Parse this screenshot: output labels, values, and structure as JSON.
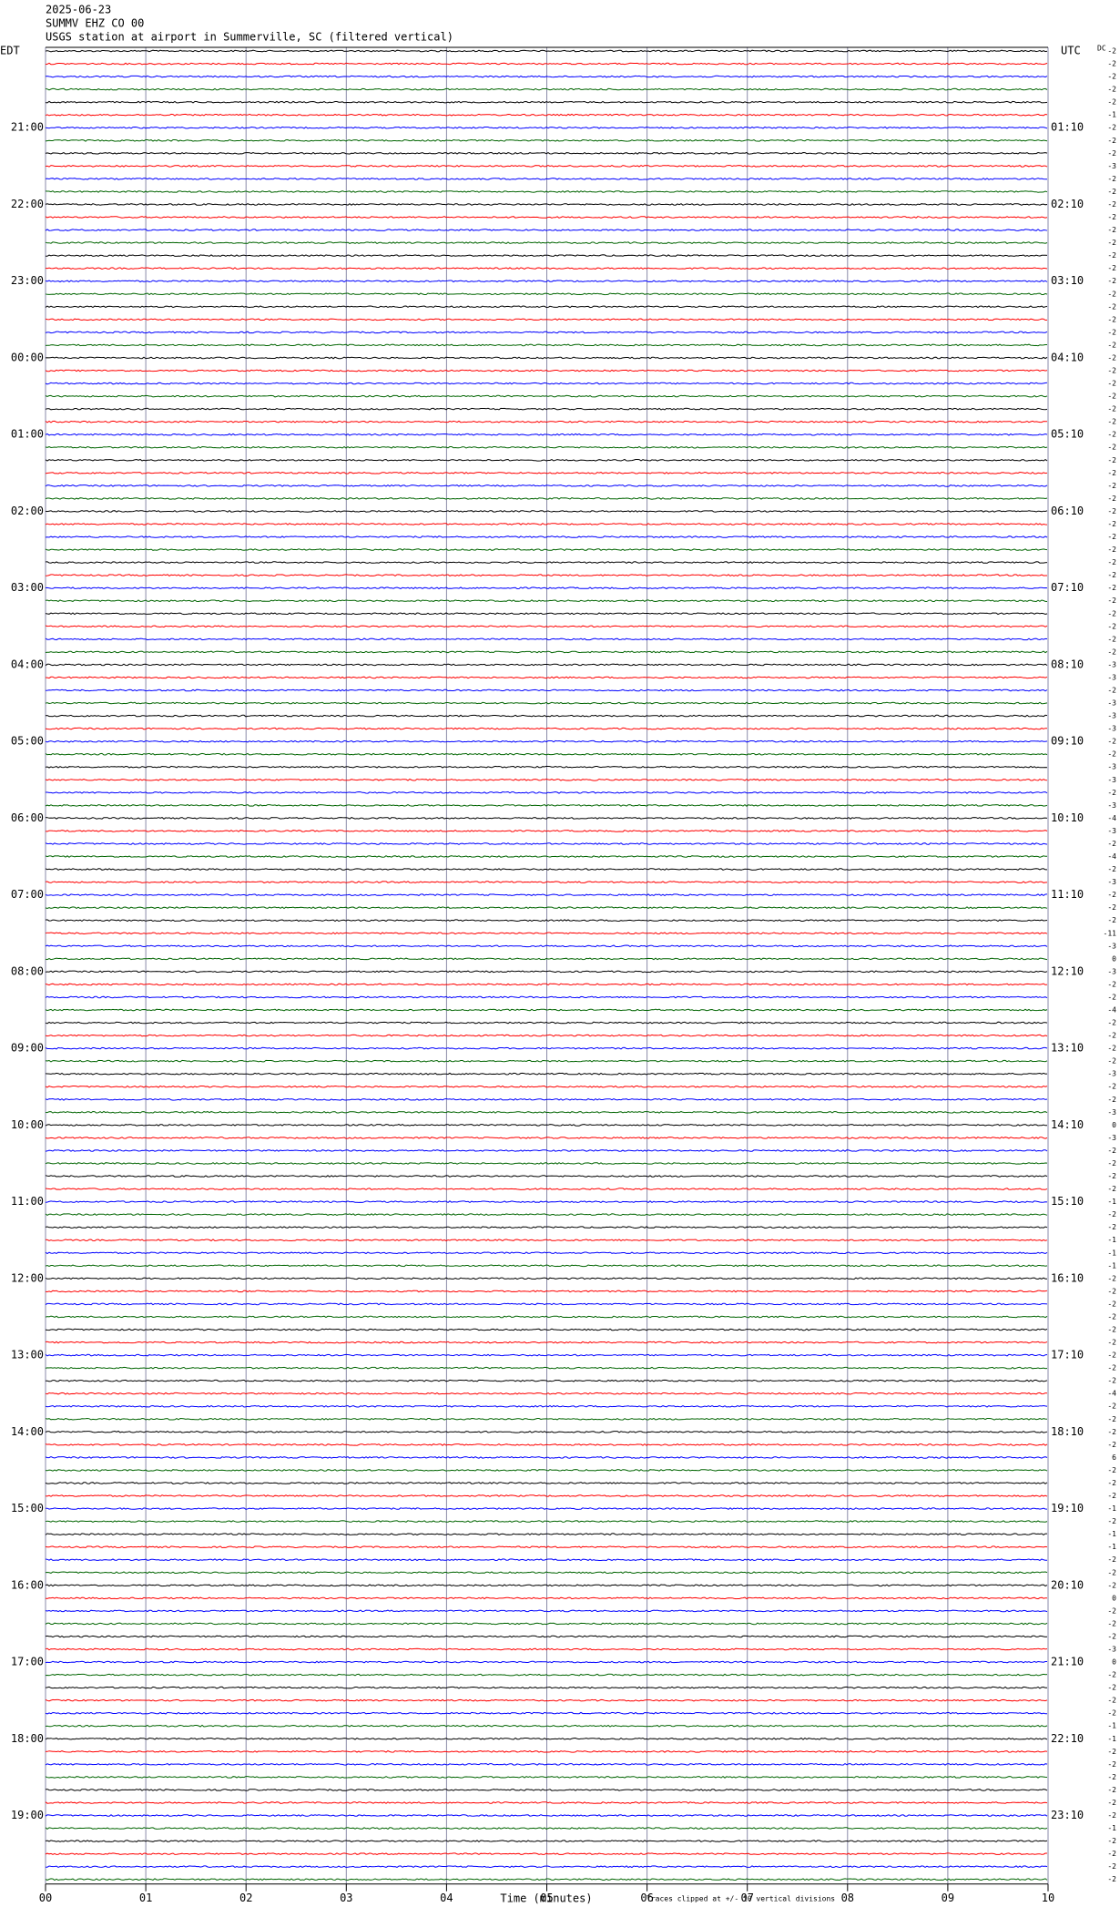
{
  "header": {
    "date": "2025-06-23",
    "station": "SUMMV EHZ CO 00",
    "description": "USGS station at airport in Summerville, SC (filtered vertical)"
  },
  "chart_data": {
    "type": "helicorder",
    "left_label": "EDT",
    "right_label": "UTC",
    "dc_label": "DC",
    "left_times": [
      "21:00",
      "22:00",
      "23:00",
      "00:00",
      "01:00",
      "02:00",
      "03:00",
      "04:00",
      "05:00",
      "06:00",
      "07:00",
      "08:00",
      "09:00",
      "10:00",
      "11:00",
      "12:00",
      "13:00",
      "14:00",
      "15:00",
      "16:00",
      "17:00",
      "18:00",
      "19:00"
    ],
    "right_times": [
      "01:10",
      "02:10",
      "03:10",
      "04:10",
      "05:10",
      "06:10",
      "07:10",
      "08:10",
      "09:10",
      "10:10",
      "11:10",
      "12:10",
      "13:10",
      "14:10",
      "15:10",
      "16:10",
      "17:10",
      "18:10",
      "19:10",
      "20:10",
      "21:10",
      "22:10",
      "23:10"
    ],
    "trace_colors": [
      "#000000",
      "#ff0000",
      "#0000ff",
      "#006400"
    ],
    "dc_offsets": [
      -2,
      -2,
      -2,
      -2,
      -2,
      -1,
      -2,
      -2,
      -2,
      -3,
      -2,
      -2,
      -2,
      -2,
      -2,
      -2,
      -2,
      -2,
      -2,
      -2,
      -2,
      -2,
      -2,
      -2,
      -2,
      -2,
      -2,
      -2,
      -2,
      -2,
      -2,
      -2,
      -2,
      -2,
      -2,
      -2,
      -2,
      -2,
      -2,
      -2,
      -2,
      -2,
      -2,
      -2,
      -2,
      -2,
      -2,
      -2,
      -3,
      -3,
      -2,
      -3,
      -3,
      -3,
      -2,
      -2,
      -3,
      -3,
      -2,
      -3,
      -4,
      -3,
      -2,
      -4,
      -2,
      -3,
      -2,
      -2,
      -2,
      -11,
      -3,
      0,
      -3,
      -2,
      -2,
      -4,
      -2,
      -2,
      -2,
      -2,
      -3,
      -2,
      -2,
      -3,
      0,
      -3,
      -2,
      -2,
      -2,
      -2,
      -1,
      -2,
      -2,
      -1,
      -1,
      -1,
      -2,
      -2,
      -2,
      -2,
      -2,
      -2,
      -2,
      -2,
      -2,
      -4,
      -2,
      -2,
      -2,
      -2,
      6,
      -2,
      -2,
      -2,
      -1,
      -2,
      -1,
      -1,
      -2,
      -2,
      -2,
      0,
      -2,
      -2,
      -2,
      -3,
      0,
      -2,
      -2,
      -2,
      -2,
      -1,
      -1,
      -2,
      -2,
      -2,
      -2,
      -2,
      -2,
      -1,
      -2,
      -2,
      -2,
      -2
    ],
    "xlim": [
      0,
      10
    ],
    "xticks": [
      {
        "value": 0,
        "label": "00"
      },
      {
        "value": 1,
        "label": "01"
      },
      {
        "value": 2,
        "label": "02"
      },
      {
        "value": 3,
        "label": "03"
      },
      {
        "value": 4,
        "label": "04"
      },
      {
        "value": 5,
        "label": "05"
      },
      {
        "value": 6,
        "label": "06"
      },
      {
        "value": 7,
        "label": "07"
      },
      {
        "value": 8,
        "label": "08"
      },
      {
        "value": 9,
        "label": "09"
      },
      {
        "value": 10,
        "label": "10"
      }
    ],
    "xlabel": "Time (minutes)",
    "note": "Traces clipped at +/- 10 vertical divisions",
    "grid": true
  }
}
